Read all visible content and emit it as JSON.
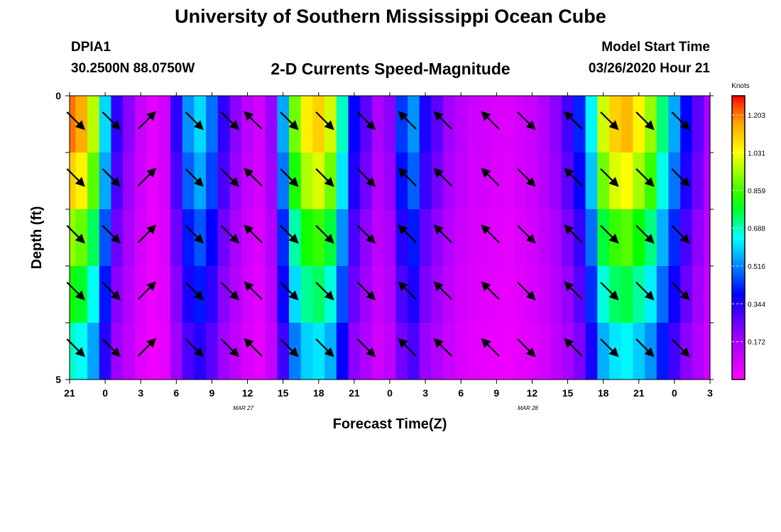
{
  "header": {
    "title": "University of Southern Mississippi Ocean Cube",
    "station": "DPIA1",
    "location": "30.2500N 88.0750W",
    "plot_title": "2-D Currents Speed-Magnitude",
    "start_label": "Model Start Time",
    "start_value": "03/26/2020 Hour 21"
  },
  "footer": {
    "title": "University of Southern Mississippi Ocean Cube"
  },
  "chart_data": {
    "type": "heatmap",
    "xlabel": "Forecast Time(Z)",
    "ylabel": "Depth (ft)",
    "x_tick_labels": [
      "21",
      "0",
      "3",
      "6",
      "9",
      "12",
      "15",
      "18",
      "21",
      "0",
      "3",
      "6",
      "9",
      "12",
      "15",
      "18",
      "21",
      "0",
      "3"
    ],
    "date_labels": [
      {
        "label": "MAR 27",
        "hour": 15
      },
      {
        "label": "MAR 28",
        "hour": 39
      }
    ],
    "x_range_hours": [
      0,
      54
    ],
    "y_range_ft": [
      0,
      5
    ],
    "y_tick_labels": [
      {
        "value": 0,
        "label": "0"
      },
      {
        "value": 5,
        "label": "5"
      }
    ],
    "colorbar": {
      "unit": "Knots",
      "min": 0.0,
      "max": 1.29,
      "tick_labels": [
        "1.203",
        "1.031",
        "0.859",
        "0.688",
        "0.516",
        "0.344",
        "0.172"
      ],
      "tick_values": [
        1.203,
        1.031,
        0.859,
        0.688,
        0.516,
        0.344,
        0.172
      ]
    },
    "depth_levels": 5,
    "speed_base": [
      1.1,
      1.05,
      0.88,
      0.55,
      0.3,
      0.2,
      0.1,
      0.05,
      0.08,
      0.3,
      0.48,
      0.55,
      0.45,
      0.3,
      0.2,
      0.12,
      0.08,
      0.18,
      0.5,
      0.82,
      0.96,
      1.0,
      0.9,
      0.62,
      0.35,
      0.25,
      0.15,
      0.2,
      0.4,
      0.48,
      0.32,
      0.25,
      0.17,
      0.12,
      0.09,
      0.08,
      0.07,
      0.06,
      0.08,
      0.1,
      0.14,
      0.2,
      0.28,
      0.38,
      0.58,
      0.9,
      1.0,
      1.03,
      0.95,
      0.85,
      0.66,
      0.5,
      0.35,
      0.25,
      0.15
    ],
    "speed_level_factor": [
      1.1,
      1.0,
      0.85,
      0.74,
      0.62
    ],
    "vectors": {
      "hours": [
        0.5,
        3.5,
        6.5,
        10.5,
        13.5,
        15.5,
        18.5,
        21.5,
        25.0,
        28.5,
        31.5,
        35.5,
        38.5,
        42.5,
        45.5,
        48.5,
        51.5
      ],
      "directions": [
        "se",
        "se",
        "ne",
        "se",
        "se",
        "nw",
        "se",
        "se",
        "se",
        "nw",
        "nw",
        "nw",
        "se",
        "nw",
        "se",
        "se",
        "se"
      ]
    },
    "grid": "off",
    "legend": "right colorbar"
  }
}
